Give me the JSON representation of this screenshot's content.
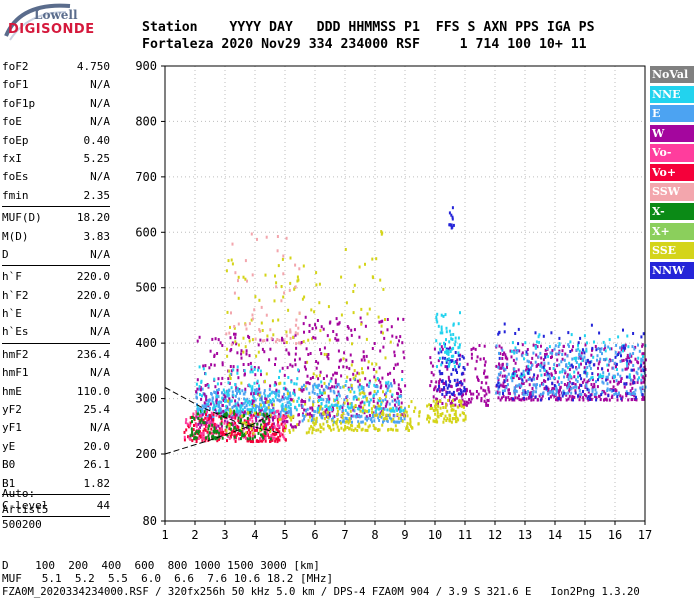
{
  "logo": {
    "line1": "Lowell",
    "line2": "DIGISONDE"
  },
  "header": {
    "line1": "Station    YYYY DAY   DDD HHMMSS P1  FFS S AXN PPS IGA PS",
    "line2": "Fortaleza 2020 Nov29 334 234000 RSF     1 714 100 10+ 11"
  },
  "params": [
    {
      "name": "foF2",
      "value": "4.750"
    },
    {
      "name": "foF1",
      "value": "N/A"
    },
    {
      "name": "foF1p",
      "value": "N/A"
    },
    {
      "name": "foE",
      "value": "N/A"
    },
    {
      "name": "foEp",
      "value": "0.40"
    },
    {
      "name": "fxI",
      "value": "5.25"
    },
    {
      "name": "foEs",
      "value": "N/A"
    },
    {
      "name": "fmin",
      "value": "2.35"
    },
    {
      "sep": true
    },
    {
      "name": "MUF(D)",
      "value": "18.20"
    },
    {
      "name": "M(D)",
      "value": "3.83"
    },
    {
      "name": "D",
      "value": "N/A"
    },
    {
      "sep": true
    },
    {
      "name": "h`F",
      "value": "220.0"
    },
    {
      "name": "h`F2",
      "value": "220.0"
    },
    {
      "name": "h`E",
      "value": "N/A"
    },
    {
      "name": "h`Es",
      "value": "N/A"
    },
    {
      "sep": true
    },
    {
      "name": "hmF2",
      "value": "236.4"
    },
    {
      "name": "hmF1",
      "value": "N/A"
    },
    {
      "name": "hmE",
      "value": "110.0"
    },
    {
      "name": "yF2",
      "value": "25.4"
    },
    {
      "name": "yF1",
      "value": "N/A"
    },
    {
      "name": "yE",
      "value": "20.0"
    },
    {
      "name": "B0",
      "value": "26.1"
    },
    {
      "name": "B1",
      "value": "1.82"
    },
    {
      "sep": true
    },
    {
      "name": "C-level",
      "value": "44"
    },
    {
      "sep": true
    }
  ],
  "auto": {
    "line1": "Auto:",
    "line2": "Artist5",
    "line3": "500200"
  },
  "bottom": {
    "d_row": "D    100  200  400  600  800 1000 1500 3000 [km]",
    "muf_row": "MUF   5.1  5.2  5.5  6.0  6.6  7.6 10.6 18.2 [MHz]",
    "footer": "FZA0M_2020334234000.RSF / 320fx256h 50 kHz 5.0 km / DPS-4 FZA0M 904 / 3.9 S 321.6 E   Ion2Png 1.3.20"
  },
  "legend": [
    {
      "label": "NoVal",
      "color": "#808080"
    },
    {
      "label": "NNE",
      "color": "#22d3ee"
    },
    {
      "label": "E",
      "color": "#4ca3f2"
    },
    {
      "label": "W",
      "color": "#a4069e"
    },
    {
      "label": "Vo-",
      "color": "#ff3d9d"
    },
    {
      "label": "Vo+",
      "color": "#f5003a"
    },
    {
      "label": "SSW",
      "color": "#f3a6ad"
    },
    {
      "label": "X-",
      "color": "#0b8a16"
    },
    {
      "label": "X+",
      "color": "#8bcf5c"
    },
    {
      "label": "SSE",
      "color": "#d4d41a"
    },
    {
      "label": "NNW",
      "color": "#2424d8"
    }
  ],
  "chart_data": {
    "type": "scatter",
    "x_ticks": [
      "1",
      "2",
      "3",
      "4",
      "5",
      "6",
      "7",
      "8",
      "9",
      "10",
      "11",
      "12",
      "13",
      "14",
      "15",
      "16",
      "17"
    ],
    "y_ticks": [
      "80",
      "200",
      "300",
      "400",
      "500",
      "600",
      "700",
      "800",
      "900"
    ],
    "xlim": [
      1,
      17
    ],
    "ylim_range": [
      200,
      900
    ],
    "ylim_bottom_label": "80",
    "grid": true,
    "legend_position": "right",
    "fit_line": {
      "x": [
        1.0,
        2.5,
        3.8,
        4.5
      ],
      "y": [
        200,
        225,
        250,
        270
      ]
    },
    "fit_line_upper": {
      "x": [
        1.0,
        2.2,
        3.5,
        4.8
      ],
      "y": [
        320,
        285,
        255,
        238
      ]
    },
    "clusters": [
      {
        "series": "E",
        "x": [
          2.0,
          5.2
        ],
        "y": [
          270,
          320
        ],
        "n": 320
      },
      {
        "series": "W",
        "x": [
          2.0,
          5.5
        ],
        "y": [
          250,
          420
        ],
        "n": 260
      },
      {
        "series": "Vo+",
        "x": [
          1.6,
          5.0
        ],
        "y": [
          225,
          275
        ],
        "n": 220
      },
      {
        "series": "Vo-",
        "x": [
          1.6,
          5.0
        ],
        "y": [
          230,
          280
        ],
        "n": 120
      },
      {
        "series": "X-",
        "x": [
          1.8,
          4.5
        ],
        "y": [
          230,
          280
        ],
        "n": 120
      },
      {
        "series": "NNE",
        "x": [
          2.0,
          5.5
        ],
        "y": [
          280,
          360
        ],
        "n": 130
      },
      {
        "series": "SSE",
        "x": [
          3.0,
          6.5
        ],
        "y": [
          240,
          560
        ],
        "n": 150
      },
      {
        "series": "SSW",
        "x": [
          3.0,
          5.5
        ],
        "y": [
          400,
          600
        ],
        "n": 60
      },
      {
        "series": "W",
        "x": [
          5.5,
          9.0
        ],
        "y": [
          270,
          450
        ],
        "n": 260
      },
      {
        "series": "E",
        "x": [
          5.5,
          9.0
        ],
        "y": [
          260,
          330
        ],
        "n": 180
      },
      {
        "series": "SSE",
        "x": [
          5.8,
          9.5
        ],
        "y": [
          245,
          300
        ],
        "n": 170
      },
      {
        "series": "NNE",
        "x": [
          6.0,
          9.0
        ],
        "y": [
          280,
          340
        ],
        "n": 80
      },
      {
        "series": "SSE",
        "x": [
          6.8,
          8.5
        ],
        "y": [
          300,
          620
        ],
        "n": 60
      },
      {
        "series": "W",
        "x": [
          9.8,
          11.8
        ],
        "y": [
          290,
          400
        ],
        "n": 140
      },
      {
        "series": "NNW",
        "x": [
          10.0,
          11.0
        ],
        "y": [
          310,
          400
        ],
        "n": 70
      },
      {
        "series": "NNE",
        "x": [
          10.0,
          10.8
        ],
        "y": [
          360,
          460
        ],
        "n": 60
      },
      {
        "series": "SSE",
        "x": [
          9.7,
          11.0
        ],
        "y": [
          260,
          300
        ],
        "n": 90
      },
      {
        "series": "NNW",
        "x": [
          10.4,
          10.6
        ],
        "y": [
          610,
          650
        ],
        "n": 12
      },
      {
        "series": "W",
        "x": [
          12.0,
          17.0
        ],
        "y": [
          300,
          400
        ],
        "n": 420
      },
      {
        "series": "E",
        "x": [
          12.0,
          17.0
        ],
        "y": [
          310,
          400
        ],
        "n": 260
      },
      {
        "series": "NNE",
        "x": [
          12.5,
          17.0
        ],
        "y": [
          340,
          420
        ],
        "n": 90
      },
      {
        "series": "NNW",
        "x": [
          12.0,
          17.0
        ],
        "y": [
          300,
          440
        ],
        "n": 110
      }
    ]
  }
}
